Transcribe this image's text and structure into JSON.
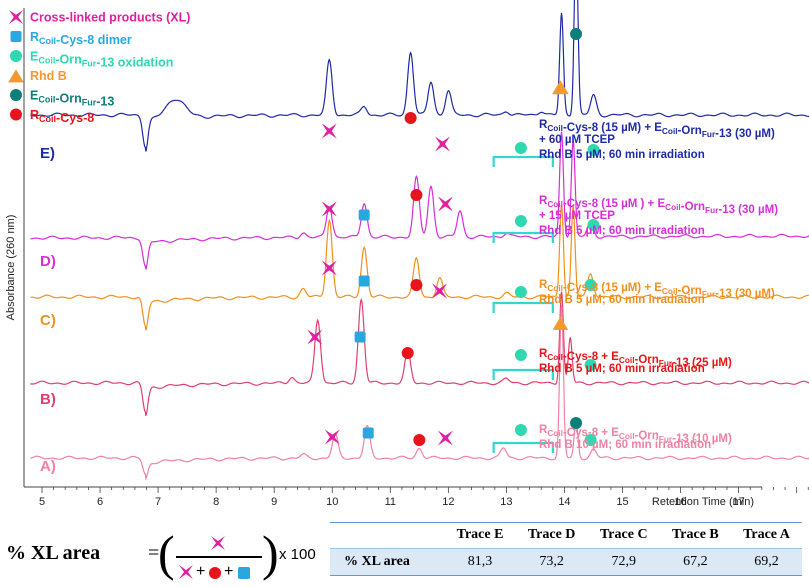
{
  "chart_data": {
    "type": "line",
    "title": "",
    "xlabel": "Retention Time (min)",
    "ylabel": "Absorbance (260 nm)",
    "xlim": [
      4.75,
      18.75
    ],
    "xticks": [
      5,
      6,
      7,
      8,
      9,
      10,
      11,
      12,
      13,
      14,
      15,
      16,
      17
    ],
    "legend": [
      {
        "label": "Cross-linked products (XL)",
        "marker": "star",
        "color": "#e020a0"
      },
      {
        "label": "RCoil-Cys-8 dimer",
        "marker": "square",
        "color": "#29a8e0"
      },
      {
        "label": "ECoil-OrnFur-13 oxidation",
        "marker": "circle",
        "color": "#30d8b0"
      },
      {
        "label": "Rhd B",
        "marker": "triangle",
        "color": "#f49a2c"
      },
      {
        "label": "ECoil-OrnFur-13",
        "marker": "circle",
        "color": "#0e7f78"
      },
      {
        "label": "RCoil-Cys-8",
        "marker": "circle",
        "color": "#e8141c"
      }
    ],
    "series": [
      {
        "name": "E)",
        "color": "#1f2aa6",
        "condition_lines": [
          "RCoil-Cys-8 (15 µM) + ECoil-OrnFur-13 (30 µM)",
          "+ 60 µM TCEP",
          "Rhd B 5 µM; 60 min irradiation"
        ],
        "peaks": [
          [
            6.78,
            -0.35
          ],
          [
            7.3,
            0.22
          ],
          [
            9.95,
            0.62
          ],
          [
            10.55,
            0.1
          ],
          [
            11.35,
            0.72
          ],
          [
            11.7,
            0.38
          ],
          [
            12.0,
            0.28
          ],
          [
            13.0,
            0.05
          ],
          [
            13.6,
            0.05
          ],
          [
            13.95,
            1.15
          ],
          [
            14.2,
            1.98
          ],
          [
            14.5,
            0.22
          ]
        ]
      },
      {
        "name": "D)",
        "color": "#d62ed8",
        "condition_lines": [
          "RCoil-Cys-8 (15 µM ) + ECoil-OrnFur-13 (30 µM)",
          "+ 15 µM TCEP",
          "Rhd B 5 µM; 60 min irradiation"
        ],
        "peaks": [
          [
            6.78,
            -0.35
          ],
          [
            9.5,
            0.06
          ],
          [
            9.95,
            0.38
          ],
          [
            10.55,
            0.42
          ],
          [
            11.45,
            0.72
          ],
          [
            11.7,
            0.62
          ],
          [
            12.2,
            0.32
          ],
          [
            13.0,
            0.05
          ],
          [
            13.95,
            1.28
          ],
          [
            14.15,
            1.18
          ],
          [
            14.45,
            0.18
          ]
        ]
      },
      {
        "name": "C)",
        "color": "#f0901e",
        "condition_lines": [
          "RCoil-Cys-8 (15 µM) + ECoil-OrnFur-13 (30 µM)",
          "Rhd B 5 µM; 60 min irradiation"
        ],
        "peaks": [
          [
            6.78,
            -0.35
          ],
          [
            9.5,
            0.1
          ],
          [
            9.95,
            0.9
          ],
          [
            10.55,
            0.58
          ],
          [
            11.45,
            0.45
          ],
          [
            11.85,
            0.22
          ],
          [
            13.0,
            0.04
          ],
          [
            13.95,
            1.1
          ],
          [
            14.15,
            1.05
          ],
          [
            14.45,
            0.28
          ]
        ]
      },
      {
        "name": "B)",
        "color": "#e0406e",
        "condition_lines": [
          "RCoil-Cys-8 + ECoil-OrnFur-13 (25 µM)",
          "Rhd B 5 µM; 60 min irradiation"
        ],
        "peaks": [
          [
            6.78,
            -0.35
          ],
          [
            9.3,
            0.08
          ],
          [
            9.75,
            0.78
          ],
          [
            10.5,
            1.02
          ],
          [
            11.3,
            0.38
          ],
          [
            13.0,
            0.05
          ],
          [
            13.95,
            1.12
          ],
          [
            14.1,
            0.55
          ]
        ]
      },
      {
        "name": "A)",
        "color": "#f081a2",
        "condition_lines": [
          "RCoil-Cys-8 + ECoil-OrnFur-13 (10 µM)",
          "Rhd B 10 µM; 60 min irradiation"
        ],
        "peaks": [
          [
            6.78,
            -0.2
          ],
          [
            9.5,
            0.04
          ],
          [
            10.05,
            0.28
          ],
          [
            10.6,
            0.38
          ],
          [
            11.5,
            0.12
          ],
          [
            12.95,
            0.12
          ],
          [
            13.95,
            1.85
          ],
          [
            14.2,
            0.45
          ],
          [
            14.5,
            0.1
          ]
        ]
      }
    ],
    "xl_area_formula": "% XL area = XL / (XL + RCoil-Cys-8 + RCoil-Cys-8 dimer) x 100",
    "table": {
      "row_label": "% XL area",
      "columns": [
        "Trace E",
        "Trace D",
        "Trace C",
        "Trace B",
        "Trace A"
      ],
      "values": [
        "81,3",
        "73,2",
        "72,9",
        "67,2",
        "69,2"
      ]
    }
  },
  "formula": {
    "label": "% XL area",
    "equals": "=",
    "multiplier": "x 100",
    "plus": "+"
  }
}
